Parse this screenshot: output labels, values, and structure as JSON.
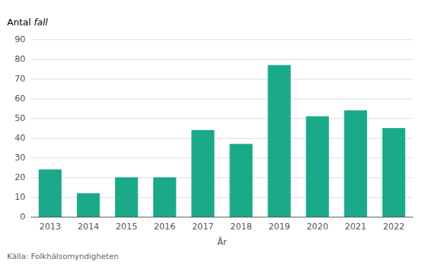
{
  "chart_data": {
    "type": "bar",
    "categories": [
      "2013",
      "2014",
      "2015",
      "2016",
      "2017",
      "2018",
      "2019",
      "2020",
      "2021",
      "2022"
    ],
    "values": [
      24,
      12,
      20,
      20,
      44,
      37,
      77,
      51,
      54,
      45
    ],
    "color": "#1aaa8a",
    "xlabel": "År",
    "ylabel": "Antal fall",
    "source": "Källa: Folkhälsomyndigheten",
    "ylim": [
      0,
      90
    ],
    "yticks": [
      0,
      10,
      20,
      30,
      40,
      50,
      60,
      70,
      80,
      90
    ],
    "grid": true
  }
}
